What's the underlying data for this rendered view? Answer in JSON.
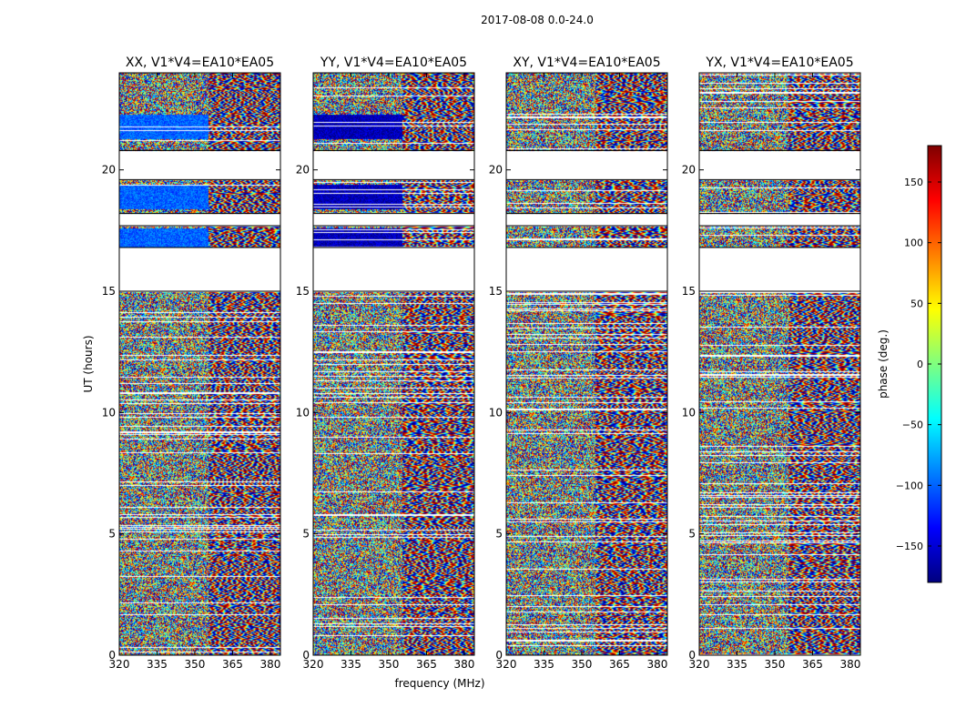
{
  "figure": {
    "suptitle": "2017-08-08 0.0-24.0",
    "xlabel": "frequency (MHz)",
    "ylabel": "UT (hours)"
  },
  "colorbar": {
    "label": "phase (deg.)",
    "range": [
      -180,
      180
    ],
    "ticks": [
      150,
      100,
      50,
      0,
      -50,
      -100,
      -150
    ],
    "tick_labels": [
      "150",
      "100",
      "50",
      "0",
      "−50",
      "−100",
      "−150"
    ],
    "colormap": [
      "#00007f",
      "#0000ff",
      "#007fff",
      "#00ffff",
      "#7fff7f",
      "#ffff00",
      "#ff7f00",
      "#ff0000",
      "#7f0000"
    ]
  },
  "chart_data": [
    {
      "type": "heatmap",
      "title": "XX, V1*V4=EA10*EA05",
      "xlim": [
        320,
        384
      ],
      "ylim": [
        0,
        24
      ],
      "xticks": [
        320,
        335,
        350,
        365,
        380
      ],
      "xtick_labels": [
        "320",
        "335",
        "350",
        "365",
        "380"
      ],
      "yticks": [
        0,
        5,
        10,
        15,
        20
      ],
      "ytick_labels": [
        "0",
        "5",
        "10",
        "15",
        "20"
      ],
      "flagged_ut_ranges": [
        [
          15.0,
          16.8
        ],
        [
          19.6,
          20.8
        ],
        [
          17.7,
          18.2
        ]
      ],
      "low_band_phase_ut_ranges": [
        [
          18.4,
          19.4
        ],
        [
          16.8,
          17.6
        ],
        [
          21.3,
          22.3
        ]
      ],
      "low_band_phase_value": -100
    },
    {
      "type": "heatmap",
      "title": "YY, V1*V4=EA10*EA05",
      "xlim": [
        320,
        384
      ],
      "ylim": [
        0,
        24
      ],
      "xticks": [
        320,
        335,
        350,
        365,
        380
      ],
      "xtick_labels": [
        "320",
        "335",
        "350",
        "365",
        "380"
      ],
      "yticks": [
        0,
        5,
        10,
        15,
        20
      ],
      "ytick_labels": [
        "0",
        "5",
        "10",
        "15",
        "20"
      ],
      "flagged_ut_ranges": [
        [
          15.0,
          16.8
        ],
        [
          19.6,
          20.8
        ],
        [
          17.7,
          18.2
        ]
      ],
      "low_band_phase_ut_ranges": [
        [
          18.4,
          19.4
        ],
        [
          16.8,
          17.6
        ],
        [
          21.3,
          22.3
        ]
      ],
      "low_band_phase_value": -160
    },
    {
      "type": "heatmap",
      "title": "XY, V1*V4=EA10*EA05",
      "xlim": [
        320,
        384
      ],
      "ylim": [
        0,
        24
      ],
      "xticks": [
        320,
        335,
        350,
        365,
        380
      ],
      "xtick_labels": [
        "320",
        "335",
        "350",
        "365",
        "380"
      ],
      "yticks": [
        0,
        5,
        10,
        15,
        20
      ],
      "ytick_labels": [
        "0",
        "5",
        "10",
        "15",
        "20"
      ],
      "flagged_ut_ranges": [
        [
          15.0,
          16.8
        ],
        [
          19.6,
          20.8
        ],
        [
          17.7,
          18.2
        ]
      ],
      "low_band_phase_ut_ranges": [],
      "low_band_phase_value": null
    },
    {
      "type": "heatmap",
      "title": "YX, V1*V4=EA10*EA05",
      "xlim": [
        320,
        384
      ],
      "ylim": [
        0,
        24
      ],
      "xticks": [
        320,
        335,
        350,
        365,
        380
      ],
      "xtick_labels": [
        "320",
        "335",
        "350",
        "365",
        "380"
      ],
      "yticks": [
        0,
        5,
        10,
        15,
        20
      ],
      "ytick_labels": [
        "0",
        "5",
        "10",
        "15",
        "20"
      ],
      "flagged_ut_ranges": [
        [
          15.0,
          16.8
        ],
        [
          19.6,
          20.8
        ],
        [
          17.7,
          18.2
        ]
      ],
      "low_band_phase_ut_ranges": [],
      "low_band_phase_value": null
    }
  ]
}
